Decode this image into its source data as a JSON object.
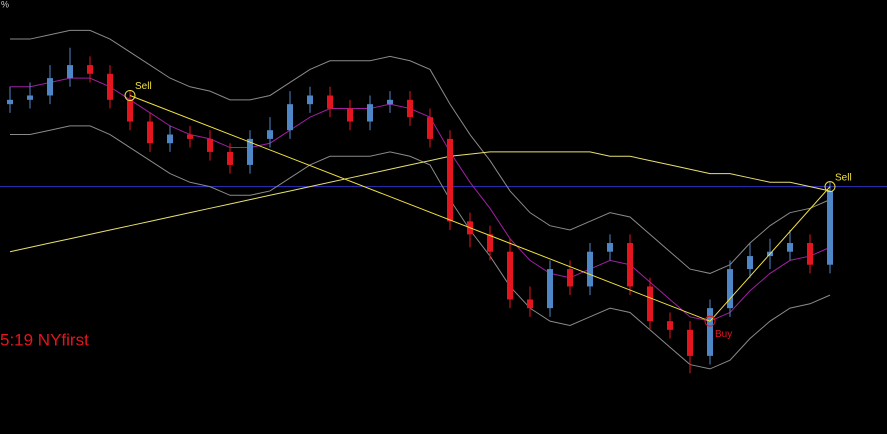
{
  "chart_data": {
    "type": "candlestick",
    "corner_text": "%",
    "annotation": "5:19 NYfirst",
    "ylim": [
      0,
      100
    ],
    "up_color": "#4f86c6",
    "down_color": "#e3161f",
    "open": [
      76,
      77,
      78,
      82,
      85,
      83,
      77,
      72,
      67,
      69,
      68,
      65,
      62,
      68,
      70,
      76,
      78,
      75,
      72,
      76,
      77,
      73,
      68,
      49,
      46,
      42,
      31,
      29,
      38,
      34,
      42,
      44,
      34,
      26,
      24,
      18,
      29,
      38,
      41,
      42,
      44,
      39
    ],
    "close": [
      77,
      78,
      82,
      85,
      83,
      77,
      72,
      67,
      69,
      68,
      65,
      62,
      68,
      70,
      76,
      78,
      75,
      72,
      76,
      77,
      73,
      68,
      49,
      46,
      42,
      31,
      29,
      38,
      34,
      42,
      44,
      34,
      26,
      24,
      18,
      29,
      38,
      41,
      42,
      44,
      39,
      56
    ],
    "high": [
      80,
      81,
      85,
      89,
      87,
      85,
      79,
      74,
      71,
      71,
      70,
      67,
      70,
      73,
      79,
      80,
      80,
      77,
      78,
      79,
      79,
      75,
      70,
      51,
      48,
      45,
      34,
      40,
      40,
      44,
      46,
      46,
      36,
      28,
      26,
      31,
      40,
      44,
      45,
      47,
      46,
      58
    ],
    "low": [
      74,
      75,
      76,
      80,
      81,
      75,
      70,
      65,
      65,
      66,
      63,
      60,
      60,
      66,
      68,
      74,
      73,
      70,
      70,
      74,
      71,
      66,
      47,
      43,
      40,
      29,
      27,
      27,
      32,
      32,
      40,
      32,
      24,
      22,
      14,
      16,
      27,
      36,
      38,
      40,
      37,
      37
    ],
    "lines": [
      {
        "name": "upper-band",
        "color": "#8a8a8a",
        "values": [
          91,
          91,
          92,
          93,
          93,
          91,
          88,
          85,
          82,
          80,
          79,
          77,
          77,
          78,
          81,
          84,
          86,
          86,
          86,
          87,
          86,
          84,
          76,
          69,
          63,
          56,
          51,
          48,
          47,
          49,
          51,
          50,
          46,
          42,
          38,
          37,
          39,
          44,
          48,
          51,
          52,
          54
        ]
      },
      {
        "name": "lower-band",
        "color": "#8a8a8a",
        "values": [
          69,
          69,
          70,
          71,
          71,
          69,
          66,
          63,
          60,
          58,
          57,
          55,
          55,
          56,
          59,
          62,
          64,
          64,
          64,
          65,
          64,
          62,
          54,
          47,
          41,
          34,
          29,
          26,
          25,
          27,
          29,
          28,
          24,
          20,
          16,
          15,
          17,
          22,
          26,
          29,
          30,
          32
        ]
      },
      {
        "name": "middle-band",
        "color": "#a020a0",
        "values": [
          80,
          80,
          81,
          82,
          82,
          80,
          77,
          74,
          71,
          69,
          68,
          66,
          66,
          67,
          70,
          73,
          75,
          75,
          75,
          76,
          75,
          73,
          65,
          58,
          52,
          45,
          40,
          37,
          36,
          38,
          40,
          39,
          35,
          31,
          27,
          26,
          28,
          33,
          37,
          40,
          41,
          43
        ]
      },
      {
        "name": "long-average",
        "color": "#e8e070",
        "values": [
          42,
          43,
          44,
          45,
          46,
          47,
          48,
          49,
          50,
          51,
          52,
          53,
          54,
          55,
          56,
          57,
          58,
          59,
          60,
          61,
          62,
          63,
          64,
          64.5,
          65,
          65,
          65,
          65,
          65,
          65,
          64,
          64,
          63,
          62,
          61,
          60,
          60,
          59,
          58,
          58,
          57,
          56
        ]
      }
    ],
    "level": 57,
    "level_color": "#3030c0",
    "signal_color": "#f0e040",
    "signals": [
      {
        "label": "Sell",
        "index": 6,
        "value": 78
      },
      {
        "label": "Buy",
        "index": 35,
        "value": 26
      },
      {
        "label": "Sell",
        "index": 41,
        "value": 57
      }
    ]
  }
}
